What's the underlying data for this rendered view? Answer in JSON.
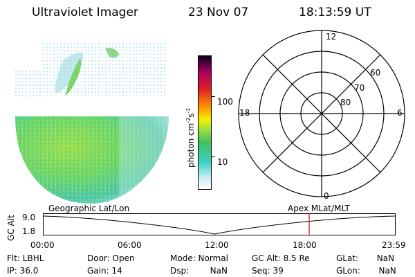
{
  "header": {
    "instrument": "Ultraviolet Imager",
    "date": "23 Nov 07",
    "time": "18:13:59 UT"
  },
  "colorbar": {
    "label_main": "photon cm",
    "label_exp1": "-2",
    "label_mid": "s",
    "label_exp2": "-1",
    "ticks": [
      "100",
      "10"
    ]
  },
  "polar": {
    "mlt_labels": {
      "top": "12",
      "left": "18",
      "right": "6",
      "bottom": "0"
    },
    "lat_labels": [
      "60",
      "70",
      "80"
    ]
  },
  "track": {
    "left_title": "Geographic Lat/Lon",
    "right_title": "Apex  MLat/MLT",
    "y_axis_label": "GC Alt",
    "y_ticks": [
      "9.0",
      "1.8"
    ],
    "x_ticks": [
      "00:00",
      "06:00",
      "12:00",
      "18:00",
      "23:59"
    ],
    "marker_color": "#cc0000"
  },
  "info": {
    "flt": "Flt: LBHL",
    "ip": "IP: 36.0",
    "door": "Door: Open",
    "gain": "Gain: 14",
    "mode": "Mode: Normal",
    "dsp": "Dsp:        NaN",
    "gc_alt": "GC Alt: 8.5 Re",
    "seq": "Seq: 39",
    "glat": "GLat:       NaN",
    "glon": "GLon:       NaN"
  }
}
